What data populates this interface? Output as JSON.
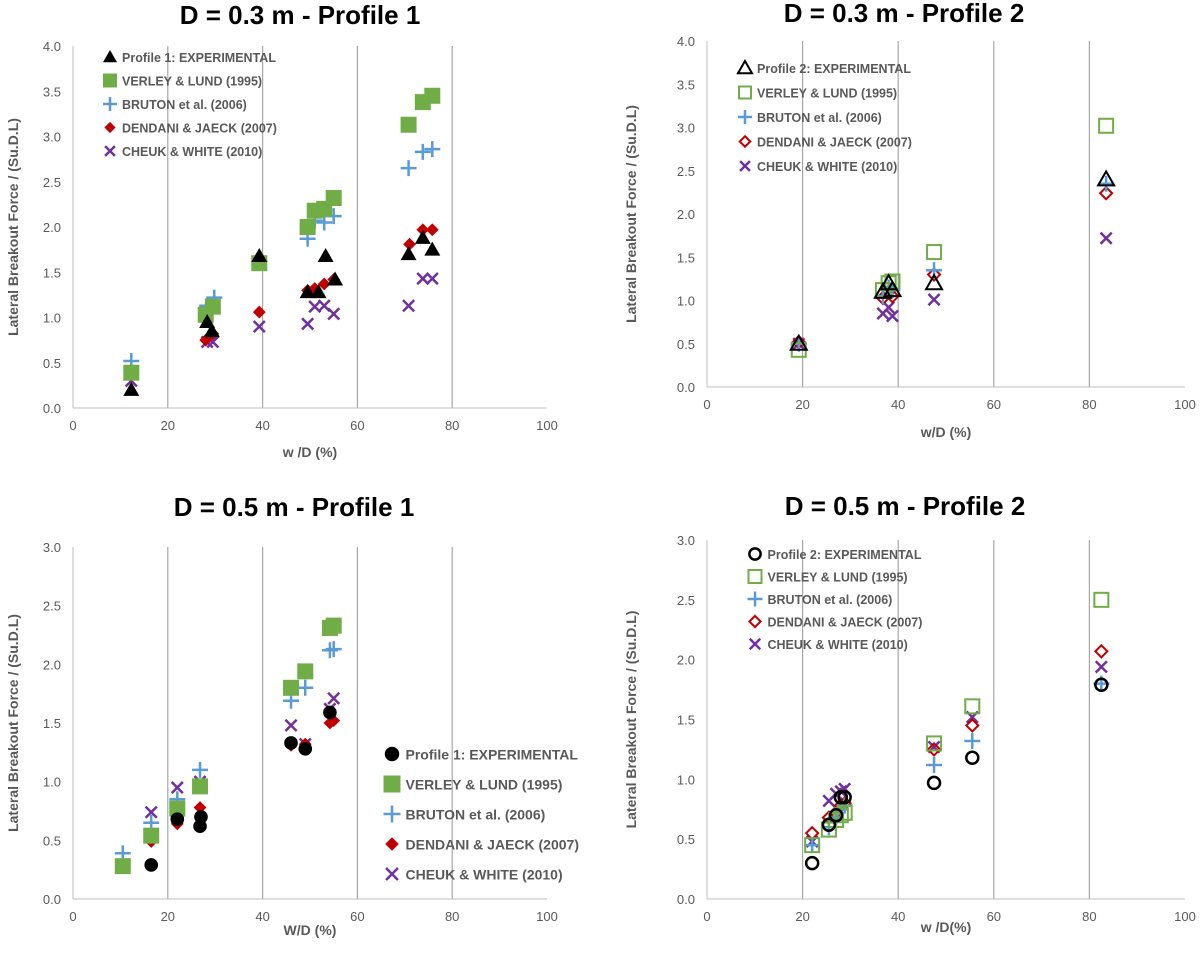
{
  "colors": {
    "experimental": "#000000",
    "verley": "#70AD47",
    "bruton": "#5B9BD5",
    "dendani": "#C00000",
    "cheuk": "#7030A0",
    "tick": "#595959",
    "gridline": "#A6A6A6"
  },
  "chart_data": [
    {
      "type": "scatter",
      "title": "D = 0.3 m - Profile 1",
      "xlabel": "w /D (%)",
      "ylabel": "Lateral Breakout  Force / (Su.D.L)",
      "xlim": [
        0,
        100
      ],
      "ylim": [
        0,
        4.0
      ],
      "xticks": [
        0,
        20,
        40,
        60,
        80,
        100
      ],
      "yticks": [
        0,
        0.5,
        1.0,
        1.5,
        2.0,
        2.5,
        3.0,
        3.5,
        4.0
      ],
      "xtick_labels": [
        "0",
        "20",
        "40",
        "60",
        "80",
        "100"
      ],
      "ytick_labels": [
        "0.0",
        "0.5",
        "1.0",
        "1.5",
        "2.0",
        "2.5",
        "3.0",
        "3.5",
        "4.0"
      ],
      "gridlines_x": [
        20,
        40,
        60,
        80
      ],
      "legend_position": "top-left",
      "series": [
        {
          "name": "Profile 1: EXPERIMENTAL",
          "marker": "triangle-filled",
          "color_key": "experimental",
          "points": [
            [
              12.3,
              0.2
            ],
            [
              28.3,
              0.95
            ],
            [
              29.3,
              0.85
            ],
            [
              39.3,
              1.68
            ],
            [
              49.5,
              1.28
            ],
            [
              51.8,
              1.28
            ],
            [
              53.3,
              1.68
            ],
            [
              55.3,
              1.42
            ],
            [
              70.8,
              1.7
            ],
            [
              73.8,
              1.88
            ],
            [
              75.8,
              1.75
            ]
          ]
        },
        {
          "name": "VERLEY & LUND (1995)",
          "marker": "square-filled",
          "color_key": "verley",
          "points": [
            [
              12.3,
              0.39
            ],
            [
              28.0,
              1.03
            ],
            [
              29.5,
              1.12
            ],
            [
              39.3,
              1.6
            ],
            [
              49.5,
              2.0
            ],
            [
              51.0,
              2.18
            ],
            [
              53.0,
              2.2
            ],
            [
              55.0,
              2.32
            ],
            [
              70.8,
              3.13
            ],
            [
              73.8,
              3.38
            ],
            [
              75.8,
              3.45
            ]
          ]
        },
        {
          "name": "BRUTON et al. (2006)",
          "marker": "plus",
          "color_key": "bruton",
          "points": [
            [
              12.3,
              0.52
            ],
            [
              28.3,
              1.13
            ],
            [
              29.8,
              1.22
            ],
            [
              39.3,
              1.62
            ],
            [
              49.5,
              1.87
            ],
            [
              51.0,
              2.07
            ],
            [
              53.0,
              2.05
            ],
            [
              55.0,
              2.12
            ],
            [
              70.8,
              2.65
            ],
            [
              73.8,
              2.83
            ],
            [
              75.8,
              2.86
            ]
          ]
        },
        {
          "name": "DENDANI & JAECK (2007)",
          "marker": "diamond-filled",
          "color_key": "dendani",
          "points": [
            [
              12.3,
              0.36
            ],
            [
              28.0,
              0.75
            ],
            [
              29.5,
              0.82
            ],
            [
              39.3,
              1.06
            ],
            [
              49.5,
              1.3
            ],
            [
              51.0,
              1.32
            ],
            [
              53.0,
              1.37
            ],
            [
              55.0,
              1.42
            ],
            [
              71.0,
              1.81
            ],
            [
              73.8,
              1.97
            ],
            [
              75.8,
              1.97
            ]
          ]
        },
        {
          "name": "CHEUK & WHITE (2010)",
          "marker": "x",
          "color_key": "cheuk",
          "points": [
            [
              12.3,
              0.3
            ],
            [
              28.3,
              0.73
            ],
            [
              29.5,
              0.73
            ],
            [
              39.3,
              0.9
            ],
            [
              49.5,
              0.93
            ],
            [
              51.0,
              1.12
            ],
            [
              53.0,
              1.13
            ],
            [
              55.0,
              1.04
            ],
            [
              70.8,
              1.13
            ],
            [
              73.8,
              1.43
            ],
            [
              75.8,
              1.43
            ]
          ]
        }
      ]
    },
    {
      "type": "scatter",
      "title": "D = 0.3 m - Profile 2",
      "xlabel": "w/D (%)",
      "ylabel": "Lateral Breakout Force / (Su.D.L)",
      "xlim": [
        0,
        100
      ],
      "ylim": [
        0,
        4.0
      ],
      "xticks": [
        0,
        20,
        40,
        60,
        80,
        100
      ],
      "yticks": [
        0,
        0.5,
        1.0,
        1.5,
        2.0,
        2.5,
        3.0,
        3.5,
        4.0
      ],
      "xtick_labels": [
        "0",
        "20",
        "40",
        "60",
        "80",
        "100"
      ],
      "ytick_labels": [
        "0.0",
        "0.5",
        "1.0",
        "1.5",
        "2.0",
        "2.5",
        "3.0",
        "3.5",
        "4.0"
      ],
      "gridlines_x": [
        20,
        40,
        60,
        80
      ],
      "legend_position": "top-left",
      "series": [
        {
          "name": "Profile 2: EXPERIMENTAL",
          "marker": "triangle-open",
          "color_key": "experimental",
          "points": [
            [
              19.2,
              0.5
            ],
            [
              36.8,
              1.1
            ],
            [
              38.0,
              1.2
            ],
            [
              38.8,
              1.12
            ],
            [
              47.5,
              1.2
            ],
            [
              83.5,
              2.4
            ]
          ]
        },
        {
          "name": "VERLEY & LUND (1995)",
          "marker": "square-open",
          "color_key": "verley",
          "points": [
            [
              19.2,
              0.43
            ],
            [
              36.8,
              1.12
            ],
            [
              38.0,
              1.2
            ],
            [
              38.8,
              1.22
            ],
            [
              47.5,
              1.56
            ],
            [
              83.5,
              3.02
            ]
          ]
        },
        {
          "name": "BRUTON et al. (2006)",
          "marker": "plus",
          "color_key": "bruton",
          "points": [
            [
              19.2,
              0.5
            ],
            [
              36.8,
              1.05
            ],
            [
              38.0,
              1.15
            ],
            [
              38.8,
              1.12
            ],
            [
              47.5,
              1.35
            ],
            [
              83.5,
              2.35
            ]
          ]
        },
        {
          "name": "DENDANI & JAECK (2007)",
          "marker": "diamond-open",
          "color_key": "dendani",
          "points": [
            [
              19.2,
              0.52
            ],
            [
              36.8,
              1.03
            ],
            [
              38.0,
              1.1
            ],
            [
              38.8,
              1.05
            ],
            [
              47.5,
              1.3
            ],
            [
              83.5,
              2.24
            ]
          ]
        },
        {
          "name": "CHEUK & WHITE (2010)",
          "marker": "x",
          "color_key": "cheuk",
          "points": [
            [
              19.2,
              0.5
            ],
            [
              36.8,
              0.85
            ],
            [
              38.0,
              0.92
            ],
            [
              38.8,
              0.82
            ],
            [
              47.5,
              1.01
            ],
            [
              83.5,
              1.72
            ]
          ]
        }
      ]
    },
    {
      "type": "scatter",
      "title": "D = 0.5 m - Profile 1",
      "xlabel": "W/D (%)",
      "ylabel": "Lateral Breakout  Force / (Su.D.L)",
      "xlim": [
        0,
        100
      ],
      "ylim": [
        0,
        3.0
      ],
      "xticks": [
        0,
        20,
        40,
        60,
        80,
        100
      ],
      "yticks": [
        0,
        0.5,
        1.0,
        1.5,
        2.0,
        2.5,
        3.0
      ],
      "xtick_labels": [
        "0",
        "20",
        "40",
        "60",
        "80",
        "100"
      ],
      "ytick_labels": [
        "0.0",
        "0.5",
        "1.0",
        "1.5",
        "2.0",
        "2.5",
        "3.0"
      ],
      "gridlines_x": [
        20,
        40,
        60,
        80
      ],
      "legend_position": "bottom-right",
      "series": [
        {
          "name": "Profile 1: EXPERIMENTAL",
          "marker": "circle-filled",
          "color_key": "experimental",
          "points": [
            [
              16.5,
              0.29
            ],
            [
              22.0,
              0.68
            ],
            [
              26.8,
              0.62
            ],
            [
              27.0,
              0.7
            ],
            [
              46.0,
              1.33
            ],
            [
              49.0,
              1.28
            ],
            [
              54.2,
              1.59
            ]
          ]
        },
        {
          "name": "VERLEY & LUND (1995)",
          "marker": "square-filled",
          "color_key": "verley",
          "points": [
            [
              10.5,
              0.28
            ],
            [
              16.5,
              0.54
            ],
            [
              22.0,
              0.77
            ],
            [
              26.8,
              0.96
            ],
            [
              46.0,
              1.8
            ],
            [
              49.0,
              1.94
            ],
            [
              54.2,
              2.31
            ],
            [
              55.0,
              2.33
            ]
          ]
        },
        {
          "name": "BRUTON et al. (2006)",
          "marker": "plus",
          "color_key": "bruton",
          "points": [
            [
              10.5,
              0.39
            ],
            [
              16.5,
              0.65
            ],
            [
              22.0,
              0.85
            ],
            [
              26.8,
              1.1
            ],
            [
              46.0,
              1.69
            ],
            [
              49.0,
              1.8
            ],
            [
              54.2,
              2.12
            ],
            [
              55.0,
              2.13
            ]
          ]
        },
        {
          "name": "DENDANI & JAECK (2007)",
          "marker": "diamond-filled",
          "color_key": "dendani",
          "points": [
            [
              10.5,
              0.27
            ],
            [
              16.5,
              0.49
            ],
            [
              22.0,
              0.64
            ],
            [
              26.8,
              0.78
            ],
            [
              46.0,
              1.31
            ],
            [
              49.0,
              1.32
            ],
            [
              54.2,
              1.5
            ],
            [
              55.0,
              1.52
            ]
          ]
        },
        {
          "name": "CHEUK & WHITE (2010)",
          "marker": "x",
          "color_key": "cheuk",
          "points": [
            [
              10.5,
              0.27
            ],
            [
              16.5,
              0.74
            ],
            [
              22.0,
              0.95
            ],
            [
              26.8,
              1.0
            ],
            [
              46.0,
              1.48
            ],
            [
              49.0,
              1.32
            ],
            [
              54.2,
              1.62
            ],
            [
              55.0,
              1.71
            ]
          ]
        }
      ]
    },
    {
      "type": "scatter",
      "title": "D = 0.5 m - Profile 2",
      "xlabel": "w /D(%)",
      "ylabel": "Lateral Breakout Force / (Su.D.L)",
      "xlim": [
        0,
        100
      ],
      "ylim": [
        0,
        3.0
      ],
      "xticks": [
        0,
        20,
        40,
        60,
        80,
        100
      ],
      "yticks": [
        0,
        0.5,
        1.0,
        1.5,
        2.0,
        2.5,
        3.0
      ],
      "xtick_labels": [
        "0",
        "20",
        "40",
        "60",
        "80",
        "100"
      ],
      "ytick_labels": [
        "0.0",
        "0.5",
        "1.0",
        "1.5",
        "2.0",
        "2.5",
        "3.0"
      ],
      "gridlines_x": [
        20,
        40,
        60,
        80
      ],
      "legend_position": "top-left",
      "series": [
        {
          "name": "Profile 2: EXPERIMENTAL",
          "marker": "circle-open",
          "color_key": "experimental",
          "points": [
            [
              22.0,
              0.3
            ],
            [
              25.5,
              0.62
            ],
            [
              27.0,
              0.7
            ],
            [
              28.0,
              0.85
            ],
            [
              28.8,
              0.85
            ],
            [
              47.5,
              0.97
            ],
            [
              55.5,
              1.18
            ],
            [
              82.5,
              1.79
            ]
          ]
        },
        {
          "name": "VERLEY & LUND (1995)",
          "marker": "square-open",
          "color_key": "verley",
          "points": [
            [
              22.0,
              0.45
            ],
            [
              25.5,
              0.58
            ],
            [
              27.0,
              0.66
            ],
            [
              28.0,
              0.7
            ],
            [
              28.8,
              0.72
            ],
            [
              47.5,
              1.3
            ],
            [
              55.5,
              1.61
            ],
            [
              82.5,
              2.5
            ]
          ]
        },
        {
          "name": "BRUTON et al. (2006)",
          "marker": "plus",
          "color_key": "bruton",
          "points": [
            [
              22.0,
              0.45
            ],
            [
              25.5,
              0.6
            ],
            [
              27.0,
              0.68
            ],
            [
              28.0,
              0.75
            ],
            [
              28.8,
              0.78
            ],
            [
              47.5,
              1.12
            ],
            [
              55.5,
              1.32
            ],
            [
              82.5,
              1.8
            ]
          ]
        },
        {
          "name": "DENDANI & JAECK (2007)",
          "marker": "diamond-open",
          "color_key": "dendani",
          "points": [
            [
              22.0,
              0.55
            ],
            [
              25.5,
              0.68
            ],
            [
              27.0,
              0.72
            ],
            [
              28.0,
              0.78
            ],
            [
              28.8,
              0.8
            ],
            [
              47.5,
              1.25
            ],
            [
              55.5,
              1.45
            ],
            [
              82.5,
              2.07
            ]
          ]
        },
        {
          "name": "CHEUK & WHITE (2010)",
          "marker": "x",
          "color_key": "cheuk",
          "points": [
            [
              22.0,
              0.48
            ],
            [
              25.5,
              0.82
            ],
            [
              27.0,
              0.88
            ],
            [
              28.0,
              0.9
            ],
            [
              28.8,
              0.92
            ],
            [
              47.5,
              1.27
            ],
            [
              55.5,
              1.52
            ],
            [
              82.5,
              1.94
            ]
          ]
        }
      ]
    }
  ]
}
